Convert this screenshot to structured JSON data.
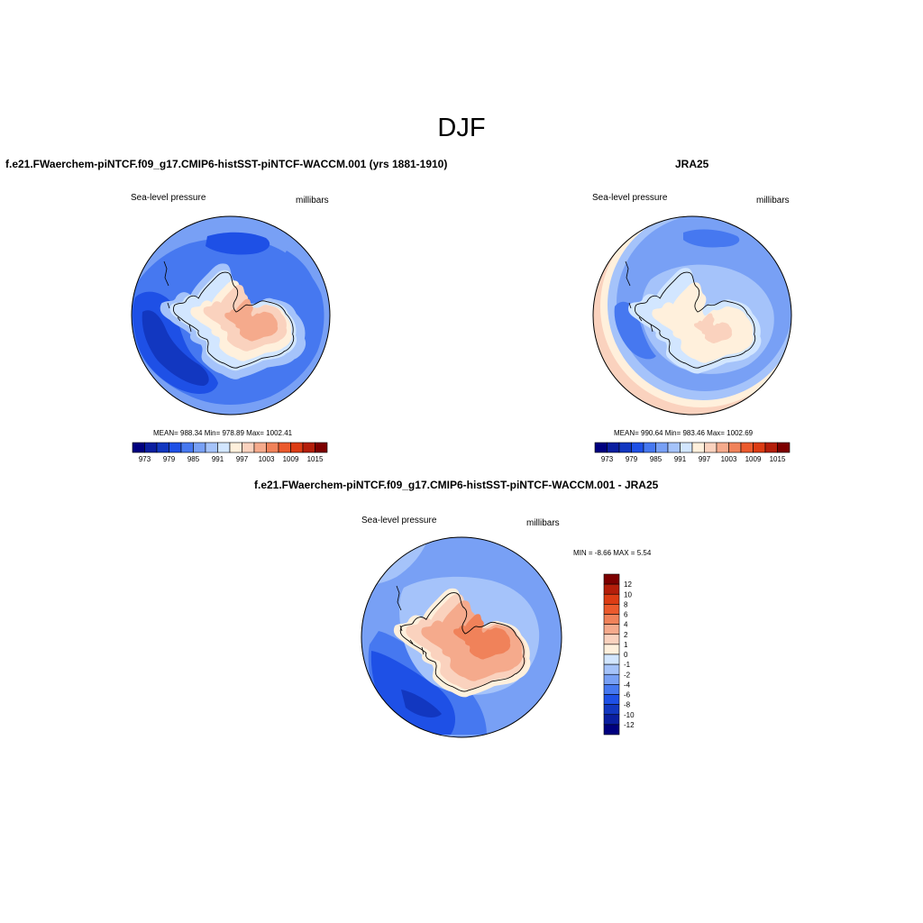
{
  "figure": {
    "title": "DJF"
  },
  "panels": [
    {
      "title": "f.e21.FWaerchem-piNTCF.f09_g17.CMIP6-histSST-piNTCF-WACCM.001 (yrs 1881-1910)",
      "left_label": "Sea-level pressure",
      "right_label": "millibars",
      "stats": "MEAN= 988.34   Min= 978.89   Max= 1002.41"
    },
    {
      "title": "JRA25",
      "left_label": "Sea-level pressure",
      "right_label": "millibars",
      "stats": "MEAN= 990.64   Min= 983.46   Max= 1002.69"
    },
    {
      "title": "f.e21.FWaerchem-piNTCF.f09_g17.CMIP6-histSST-piNTCF-WACCM.001 - JRA25",
      "left_label": "Sea-level pressure",
      "right_label": "millibars",
      "stats": "MIN =  -8.66 MAX =   5.54"
    }
  ],
  "colorbar_abs": {
    "colors": [
      "#00007f",
      "#0a1ea0",
      "#1237c0",
      "#1e50e6",
      "#4678f0",
      "#78a0f5",
      "#a5c3fa",
      "#d2e6ff",
      "#fff0dc",
      "#fad2be",
      "#f5aa8c",
      "#f0825a",
      "#eb5a2d",
      "#dc3c14",
      "#b41e0a",
      "#7d0000"
    ],
    "tick_labels": [
      "973",
      "979",
      "985",
      "991",
      "997",
      "1003",
      "1009",
      "1015"
    ]
  },
  "colorbar_diff": {
    "colors": [
      "#00007f",
      "#0a1ea0",
      "#1237c0",
      "#1e50e6",
      "#4678f0",
      "#78a0f5",
      "#a5c3fa",
      "#d2e6ff",
      "#fff0dc",
      "#fad2be",
      "#f5aa8c",
      "#f0825a",
      "#eb5a2d",
      "#dc3c14",
      "#b41e0a",
      "#7d0000"
    ],
    "tick_labels": [
      "12",
      "10",
      "8",
      "6",
      "4",
      "2",
      "1",
      "0",
      "-1",
      "-2",
      "-4",
      "-6",
      "-8",
      "-10",
      "-12"
    ]
  },
  "map_colors": {
    "c_deep": "#1237c0",
    "c_dark": "#1e50e6",
    "c_mid": "#4678f0",
    "c_light": "#78a0f5",
    "c_pale": "#a5c3fa",
    "c_vpale": "#d2e6ff",
    "w_cream": "#fff0dc",
    "w_light": "#fad2be",
    "w_mid": "#f5aa8c",
    "w_dark": "#f0825a"
  }
}
